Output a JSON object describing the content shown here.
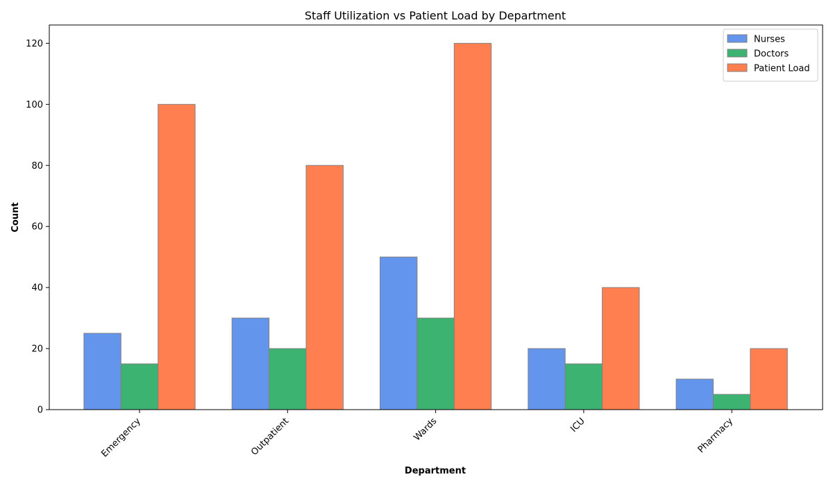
{
  "chart_data": {
    "type": "bar",
    "title": "Staff Utilization vs Patient Load by Department",
    "xlabel": "Department",
    "ylabel": "Count",
    "categories": [
      "Emergency",
      "Outpatient",
      "Wards",
      "ICU",
      "Pharmacy"
    ],
    "series": [
      {
        "name": "Nurses",
        "values": [
          25,
          30,
          50,
          20,
          10
        ],
        "color": "#6495ED"
      },
      {
        "name": "Doctors",
        "values": [
          15,
          20,
          30,
          15,
          5
        ],
        "color": "#3CB371"
      },
      {
        "name": "Patient Load",
        "values": [
          100,
          80,
          120,
          40,
          20
        ],
        "color": "#FF7F50"
      }
    ],
    "ylim": [
      0,
      126
    ],
    "yticks": [
      0,
      20,
      40,
      60,
      80,
      100,
      120
    ],
    "grid": false,
    "legend_position": "top-right",
    "bar_edge_color": "#808080"
  }
}
